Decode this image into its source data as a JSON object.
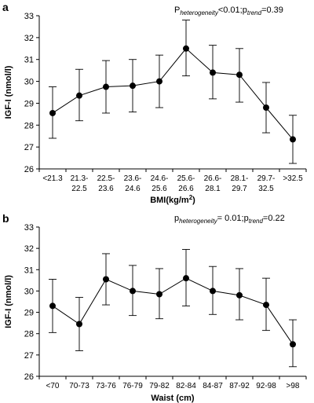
{
  "chart_data": [
    {
      "type": "line",
      "panel_label": "a",
      "annotation": {
        "p1": "P",
        "p1_sub": "heterogeneity",
        "p1_rest": "<0.01;",
        "p2": "p",
        "p2_sub": "trend",
        "p2_rest": "=0.39"
      },
      "ylabel": "IGF-I (nmol/l)",
      "xlabel": "BMI(kg/m",
      "xlabel_sup": "2",
      "xlabel_end": ")",
      "ylim": [
        26,
        33
      ],
      "yticks": [
        "26",
        "27",
        "28",
        "29",
        "30",
        "31",
        "32",
        "33"
      ],
      "categories": [
        [
          "<21.3"
        ],
        [
          "21.3-",
          "22.5"
        ],
        [
          "22.5-",
          "23.6"
        ],
        [
          "23.6-",
          "24.6"
        ],
        [
          "24.6-",
          "25.6"
        ],
        [
          "25.6-",
          "26.6"
        ],
        [
          "26.6-",
          "28.1"
        ],
        [
          "28.1-",
          "29.7"
        ],
        [
          "29.7-",
          "32.5"
        ],
        [
          ">32.5"
        ]
      ],
      "values": [
        28.55,
        29.35,
        29.75,
        29.8,
        30.0,
        31.5,
        30.4,
        30.3,
        28.8,
        27.35
      ],
      "err_low": [
        27.4,
        28.2,
        28.55,
        28.6,
        28.8,
        30.25,
        29.2,
        29.05,
        27.65,
        26.25
      ],
      "err_high": [
        29.75,
        30.55,
        30.95,
        31.0,
        31.2,
        32.8,
        31.65,
        31.5,
        29.95,
        28.45
      ],
      "grid": false
    },
    {
      "type": "line",
      "panel_label": "b",
      "annotation": {
        "p1": "p",
        "p1_sub": "heterogeneity",
        "p1_rest": "= 0.01;",
        "p2": "p",
        "p2_sub": "trend",
        "p2_rest": "=0.22"
      },
      "ylabel": "IGF-I (nmol/l)",
      "xlabel": "Waist (cm)",
      "xlabel_sup": "",
      "xlabel_end": "",
      "ylim": [
        26,
        33
      ],
      "yticks": [
        "26",
        "27",
        "28",
        "29",
        "30",
        "31",
        "32",
        "33"
      ],
      "categories": [
        [
          "<70"
        ],
        [
          "70-73"
        ],
        [
          "73-76"
        ],
        [
          "76-79"
        ],
        [
          "79-82"
        ],
        [
          "82-84"
        ],
        [
          "84-87"
        ],
        [
          "87-92"
        ],
        [
          "92-98"
        ],
        [
          ">98"
        ]
      ],
      "values": [
        29.3,
        28.45,
        30.55,
        30.0,
        29.85,
        30.6,
        30.0,
        29.8,
        29.35,
        27.5
      ],
      "err_low": [
        28.05,
        27.2,
        29.35,
        28.85,
        28.7,
        29.3,
        28.9,
        28.65,
        28.15,
        26.45
      ],
      "err_high": [
        30.55,
        29.7,
        31.75,
        31.2,
        31.05,
        31.95,
        31.15,
        31.05,
        30.6,
        28.65
      ],
      "grid": false
    }
  ]
}
